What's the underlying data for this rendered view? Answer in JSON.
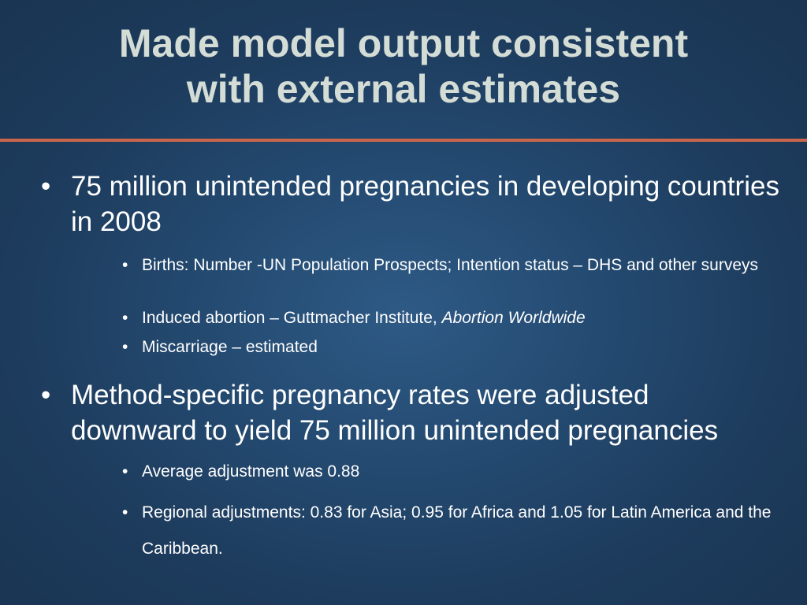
{
  "title": {
    "line1": "Made model output consistent",
    "line2": "with external estimates"
  },
  "accent_color": "#c8654a",
  "bullet_char": "•",
  "bullets": [
    {
      "text": "75 million unintended pregnancies in developing countries in 2008",
      "subs": [
        {
          "text": "Births: Number -UN Population Prospects; Intention status – DHS and other surveys"
        },
        {
          "text": "Induced abortion – Guttmacher Institute, ",
          "emphasis": "Abortion Worldwide"
        },
        {
          "text": "Miscarriage – estimated"
        }
      ]
    },
    {
      "text": "Method-specific pregnancy rates were adjusted downward to yield 75 million unintended pregnancies",
      "subs": [
        {
          "text": "Average adjustment was 0.88"
        },
        {
          "text": "Regional adjustments: 0.83 for Asia; 0.95 for Africa and 1.05 for  Latin America and the Caribbean."
        }
      ]
    }
  ]
}
